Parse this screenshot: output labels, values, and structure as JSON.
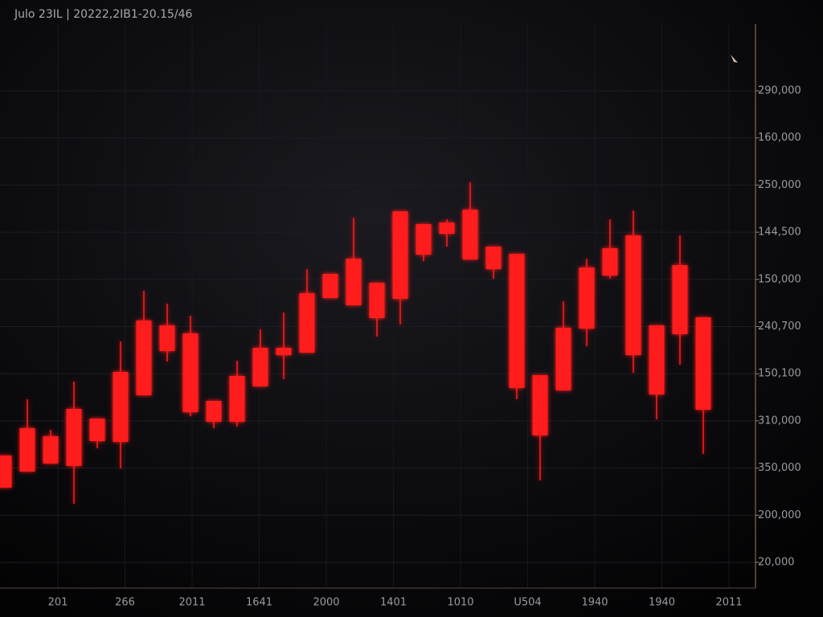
{
  "chart_data": {
    "type": "candlestick",
    "title": "Julo 23IL | 20222,2IB1-20.15/46",
    "color": "#ff1a1a",
    "ylim": [
      0,
      702
    ],
    "y_axis_labels": [
      "290,000",
      "160,000",
      "250,000",
      "144,500",
      "150,000",
      "240,700",
      "150,100",
      "310,000",
      "350,000",
      "200,000",
      "20,000"
    ],
    "x_axis_labels": [
      "201",
      "266",
      "2011",
      "1641",
      "2000",
      "1401",
      "1010",
      "U504",
      "1940",
      "1940",
      "2011"
    ],
    "open": [
      125,
      145,
      155,
      152,
      183,
      182,
      240,
      295,
      219,
      207,
      207,
      251,
      290,
      293,
      361,
      352,
      336,
      360,
      415,
      441,
      409,
      397,
      249,
      190,
      246,
      323,
      389,
      290,
      241,
      316,
      222
    ],
    "close": [
      165,
      199,
      189,
      223,
      211,
      269,
      333,
      327,
      317,
      233,
      264,
      299,
      299,
      367,
      391,
      410,
      380,
      469,
      453,
      455,
      471,
      425,
      416,
      265,
      324,
      399,
      423,
      439,
      327,
      402,
      337
    ],
    "high": [
      165,
      235,
      197,
      257,
      211,
      307,
      370,
      354,
      339,
      233,
      283,
      322,
      343,
      397,
      391,
      461,
      380,
      469,
      453,
      459,
      505,
      425,
      416,
      265,
      357,
      410,
      459,
      470,
      327,
      439,
      337
    ],
    "low": [
      125,
      145,
      155,
      105,
      174,
      149,
      240,
      282,
      214,
      199,
      201,
      251,
      260,
      293,
      361,
      352,
      313,
      328,
      407,
      425,
      409,
      385,
      235,
      134,
      246,
      301,
      385,
      268,
      210,
      278,
      167
    ],
    "grid": true
  }
}
